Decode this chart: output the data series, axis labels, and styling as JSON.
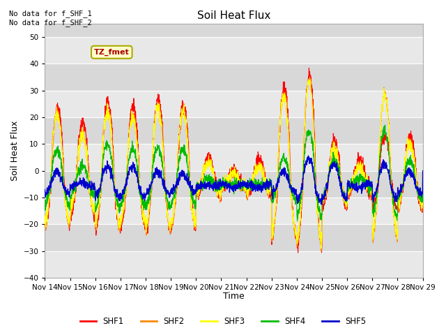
{
  "title": "Soil Heat Flux",
  "ylabel": "Soil Heat Flux",
  "xlabel": "Time",
  "ylim": [
    -40,
    55
  ],
  "yticks": [
    -40,
    -30,
    -20,
    -10,
    0,
    10,
    20,
    30,
    40,
    50
  ],
  "annotation_top": "No data for f_SHF_1\nNo data for f_SHF_2",
  "box_label": "TZ_fmet",
  "colors": {
    "SHF1": "#ff0000",
    "SHF2": "#ff8800",
    "SHF3": "#ffff00",
    "SHF4": "#00bb00",
    "SHF5": "#0000cc"
  },
  "legend_labels": [
    "SHF1",
    "SHF2",
    "SHF3",
    "SHF4",
    "SHF5"
  ],
  "xtick_labels": [
    "Nov 14",
    "Nov 15",
    "Nov 16",
    "Nov 17",
    "Nov 18",
    "Nov 19",
    "Nov 20",
    "Nov 21",
    "Nov 22",
    "Nov 23",
    "Nov 24",
    "Nov 25",
    "Nov 26",
    "Nov 27",
    "Nov 28",
    "Nov 29"
  ],
  "n_days": 15,
  "pts_per_day": 144
}
